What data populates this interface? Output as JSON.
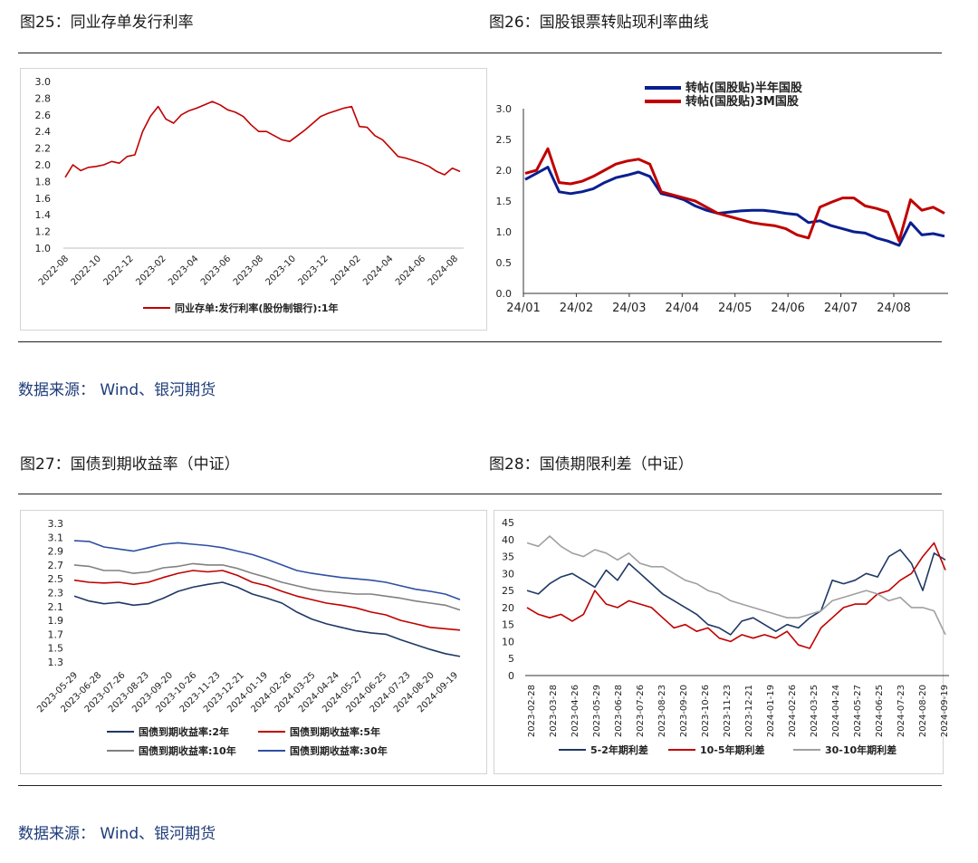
{
  "captions": {
    "fig25": "图25：同业存单发行利率",
    "fig26": "图26：国股银票转贴现利率曲线",
    "fig27": "图27：国债到期收益率（中证）",
    "fig28": "图28：国债期限利差（中证）"
  },
  "sources": {
    "top": "数据来源：  Wind、银河期货",
    "bottom": "数据来源：  Wind、银河期货"
  },
  "chart_data": [
    {
      "id": "fig25",
      "type": "line",
      "title": "",
      "y_ticks": [
        "3.0",
        "2.8",
        "2.6",
        "2.4",
        "2.2",
        "2.0",
        "1.8",
        "1.6",
        "1.4",
        "1.2",
        "1.0"
      ],
      "ylim": [
        1.0,
        3.0
      ],
      "x_ticks": [
        "2022-08",
        "2022-10",
        "2022-12",
        "2023-02",
        "2023-04",
        "2023-06",
        "2023-08",
        "2023-10",
        "2023-12",
        "2024-02",
        "2024-04",
        "2024-06",
        "2024-08"
      ],
      "series": [
        {
          "name": "同业存单:发行利率(股份制银行):1年",
          "color": "#c00000",
          "values": [
            1.85,
            2.0,
            1.93,
            1.97,
            1.98,
            2.0,
            2.04,
            2.02,
            2.1,
            2.12,
            2.4,
            2.58,
            2.7,
            2.55,
            2.5,
            2.6,
            2.65,
            2.68,
            2.72,
            2.76,
            2.72,
            2.66,
            2.63,
            2.58,
            2.48,
            2.4,
            2.4,
            2.35,
            2.3,
            2.28,
            2.35,
            2.42,
            2.5,
            2.58,
            2.62,
            2.65,
            2.68,
            2.7,
            2.46,
            2.45,
            2.35,
            2.3,
            2.2,
            2.1,
            2.08,
            2.05,
            2.02,
            1.98,
            1.92,
            1.88,
            1.96,
            1.92
          ]
        }
      ]
    },
    {
      "id": "fig26",
      "type": "line",
      "title": "",
      "y_ticks": [
        "3.0",
        "2.5",
        "2.0",
        "1.5",
        "1.0",
        "0.5",
        "0.0"
      ],
      "ylim": [
        0.0,
        3.0
      ],
      "x_ticks": [
        "24/01",
        "24/02",
        "24/03",
        "24/04",
        "24/05",
        "24/06",
        "24/07",
        "24/08"
      ],
      "series": [
        {
          "name": "转帖(国股贴)半年国股",
          "color": "#0a1f8f",
          "values": [
            1.85,
            1.95,
            2.05,
            1.65,
            1.62,
            1.65,
            1.7,
            1.8,
            1.88,
            1.92,
            1.97,
            1.9,
            1.62,
            1.58,
            1.52,
            1.42,
            1.35,
            1.3,
            1.32,
            1.34,
            1.35,
            1.35,
            1.33,
            1.3,
            1.28,
            1.15,
            1.18,
            1.1,
            1.05,
            1.0,
            0.98,
            0.9,
            0.85,
            0.78,
            1.15,
            0.95,
            0.97,
            0.93
          ]
        },
        {
          "name": "转帖(国股贴)3M国股",
          "color": "#c00000",
          "values": [
            1.95,
            2.0,
            2.35,
            1.8,
            1.78,
            1.82,
            1.9,
            2.0,
            2.1,
            2.15,
            2.18,
            2.1,
            1.65,
            1.6,
            1.55,
            1.5,
            1.4,
            1.3,
            1.25,
            1.2,
            1.15,
            1.12,
            1.1,
            1.05,
            0.95,
            0.9,
            1.4,
            1.48,
            1.55,
            1.55,
            1.42,
            1.38,
            1.32,
            0.85,
            1.52,
            1.35,
            1.4,
            1.3
          ]
        }
      ]
    },
    {
      "id": "fig27",
      "type": "line",
      "title": "",
      "y_ticks": [
        "3.3",
        "3.1",
        "2.9",
        "2.7",
        "2.5",
        "2.3",
        "2.1",
        "1.9",
        "1.7",
        "1.5",
        "1.3"
      ],
      "ylim": [
        1.3,
        3.3
      ],
      "x_ticks": [
        "2023-05-29",
        "2023-06-28",
        "2023-07-26",
        "2023-08-23",
        "2023-09-20",
        "2023-10-26",
        "2023-11-23",
        "2023-12-21",
        "2024-01-19",
        "2024-02-26",
        "2024-03-25",
        "2024-04-24",
        "2024-05-27",
        "2024-06-25",
        "2024-07-23",
        "2024-08-20",
        "2024-09-19"
      ],
      "series": [
        {
          "name": "国债到期收益率:2年",
          "color": "#1f3864",
          "values": [
            2.25,
            2.18,
            2.14,
            2.16,
            2.12,
            2.14,
            2.22,
            2.32,
            2.38,
            2.42,
            2.45,
            2.38,
            2.28,
            2.22,
            2.15,
            2.02,
            1.92,
            1.85,
            1.8,
            1.75,
            1.72,
            1.7,
            1.62,
            1.55,
            1.48,
            1.42,
            1.38
          ]
        },
        {
          "name": "国债到期收益率:5年",
          "color": "#c00000",
          "values": [
            2.48,
            2.45,
            2.44,
            2.45,
            2.42,
            2.45,
            2.52,
            2.58,
            2.62,
            2.6,
            2.62,
            2.55,
            2.45,
            2.4,
            2.32,
            2.25,
            2.2,
            2.15,
            2.12,
            2.08,
            2.02,
            1.98,
            1.9,
            1.85,
            1.8,
            1.78,
            1.76
          ]
        },
        {
          "name": "国债到期收益率:10年",
          "color": "#808080",
          "values": [
            2.7,
            2.68,
            2.62,
            2.62,
            2.58,
            2.6,
            2.66,
            2.68,
            2.72,
            2.7,
            2.7,
            2.65,
            2.58,
            2.52,
            2.45,
            2.4,
            2.35,
            2.32,
            2.3,
            2.28,
            2.28,
            2.25,
            2.22,
            2.18,
            2.15,
            2.12,
            2.05
          ]
        },
        {
          "name": "国债到期收益率:30年",
          "color": "#2e4fa3",
          "values": [
            3.05,
            3.04,
            2.96,
            2.93,
            2.9,
            2.95,
            3.0,
            3.02,
            3.0,
            2.98,
            2.95,
            2.9,
            2.85,
            2.78,
            2.7,
            2.62,
            2.58,
            2.55,
            2.52,
            2.5,
            2.48,
            2.45,
            2.4,
            2.35,
            2.32,
            2.28,
            2.2
          ]
        }
      ]
    },
    {
      "id": "fig28",
      "type": "line",
      "title": "",
      "y_ticks": [
        "45",
        "40",
        "35",
        "30",
        "25",
        "20",
        "15",
        "10",
        "5",
        "0"
      ],
      "ylim": [
        0,
        45
      ],
      "x_ticks": [
        "2023-02-28",
        "2023-03-28",
        "2023-04-26",
        "2023-05-29",
        "2023-06-28",
        "2023-07-26",
        "2023-08-23",
        "2023-09-20",
        "2023-10-26",
        "2023-11-23",
        "2023-12-21",
        "2024-01-19",
        "2024-02-26",
        "2024-03-25",
        "2024-04-24",
        "2024-05-27",
        "2024-06-25",
        "2024-07-23",
        "2024-08-20",
        "2024-09-19"
      ],
      "series": [
        {
          "name": "5-2年期利差",
          "color": "#1f3864",
          "values": [
            25,
            24,
            27,
            29,
            30,
            28,
            26,
            31,
            28,
            33,
            30,
            27,
            24,
            22,
            20,
            18,
            15,
            14,
            12,
            16,
            17,
            15,
            13,
            15,
            14,
            17,
            19,
            28,
            27,
            28,
            30,
            29,
            35,
            37,
            33,
            25,
            36,
            34
          ]
        },
        {
          "name": "10-5年期利差",
          "color": "#c00000",
          "values": [
            20,
            18,
            17,
            18,
            16,
            18,
            25,
            21,
            20,
            22,
            21,
            20,
            17,
            14,
            15,
            13,
            14,
            11,
            10,
            12,
            11,
            12,
            11,
            13,
            9,
            8,
            14,
            17,
            20,
            21,
            21,
            24,
            25,
            28,
            30,
            35,
            39,
            31
          ]
        },
        {
          "name": "30-10年期利差",
          "color": "#a0a0a0",
          "values": [
            39,
            38,
            41,
            38,
            36,
            35,
            37,
            36,
            34,
            36,
            33,
            32,
            32,
            30,
            28,
            27,
            25,
            24,
            22,
            21,
            20,
            19,
            18,
            17,
            17,
            18,
            19,
            22,
            23,
            24,
            25,
            24,
            22,
            23,
            20,
            20,
            19,
            12
          ]
        }
      ]
    }
  ]
}
